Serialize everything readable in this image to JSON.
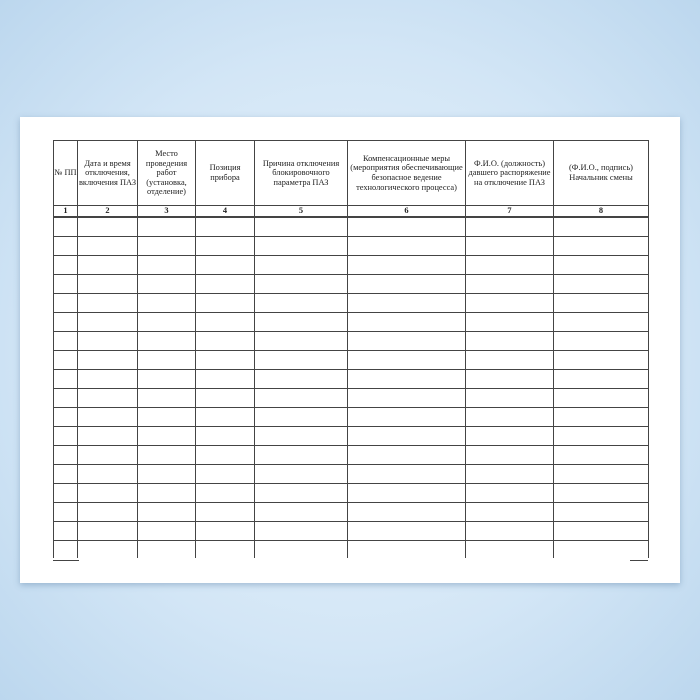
{
  "table": {
    "headers": [
      "№ ПП",
      "Дата и время отключения, включения ПАЗ",
      "Место проведения работ (установка, отделение)",
      "Позиция прибора",
      "Причина отключения блокировочного параметра ПАЗ",
      "Компенсационные меры (мероприятия обеспечивающие безопасное ведение технологического процесса)",
      "Ф.И.О. (должность) давшего распоряжение на отключение ПАЗ",
      "(Ф.И.О., подпись) Начальник смены"
    ],
    "column_numbers": [
      "1",
      "2",
      "3",
      "4",
      "5",
      "6",
      "7",
      "8"
    ],
    "empty_rows": 18
  }
}
